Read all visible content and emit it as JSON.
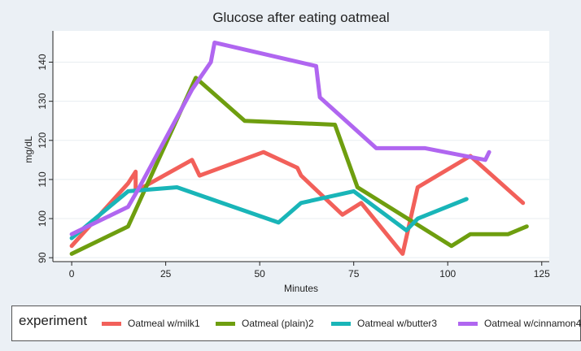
{
  "chart_data": {
    "type": "line",
    "title": "Glucose after eating oatmeal",
    "xlabel": "Minutes",
    "ylabel": "mg/dL",
    "xlim": [
      -5,
      127
    ],
    "ylim": [
      89,
      148
    ],
    "xticks": [
      0,
      25,
      50,
      75,
      100,
      125
    ],
    "yticks": [
      90,
      100,
      110,
      120,
      130,
      140
    ],
    "grid": true,
    "legend": {
      "title": "experiment",
      "position": "bottom"
    },
    "series": [
      {
        "name": "Oatmeal w/milk1",
        "color": "#f2605a",
        "points": [
          [
            0,
            93
          ],
          [
            15,
            109
          ],
          [
            17,
            112
          ],
          [
            17,
            107
          ],
          [
            32,
            115
          ],
          [
            34,
            111
          ],
          [
            51,
            117
          ],
          [
            60,
            113
          ],
          [
            61,
            111
          ],
          [
            72,
            101
          ],
          [
            77,
            104
          ],
          [
            88,
            91
          ],
          [
            92,
            108
          ],
          [
            106,
            116
          ],
          [
            120,
            104
          ]
        ]
      },
      {
        "name": "Oatmeal (plain)2",
        "color": "#6e9e0f",
        "points": [
          [
            0,
            91
          ],
          [
            15,
            98
          ],
          [
            33,
            136
          ],
          [
            46,
            125
          ],
          [
            70,
            124
          ],
          [
            76,
            108
          ],
          [
            101,
            93
          ],
          [
            106,
            96
          ],
          [
            116,
            96
          ],
          [
            121,
            98
          ]
        ]
      },
      {
        "name": "Oatmeal w/butter3",
        "color": "#19b5b8",
        "points": [
          [
            0,
            95
          ],
          [
            15,
            107
          ],
          [
            28,
            108
          ],
          [
            55,
            99
          ],
          [
            61,
            104
          ],
          [
            75,
            107
          ],
          [
            89,
            97
          ],
          [
            92,
            100
          ],
          [
            105,
            105
          ]
        ]
      },
      {
        "name": "Oatmeal w/cinnamon4",
        "color": "#b066f0",
        "points": [
          [
            0,
            96
          ],
          [
            15,
            103
          ],
          [
            18,
            108
          ],
          [
            32,
            133
          ],
          [
            37,
            140
          ],
          [
            38,
            145
          ],
          [
            65,
            139
          ],
          [
            66,
            131
          ],
          [
            81,
            118
          ],
          [
            94,
            118
          ],
          [
            110,
            115
          ],
          [
            111,
            117
          ]
        ]
      }
    ]
  }
}
